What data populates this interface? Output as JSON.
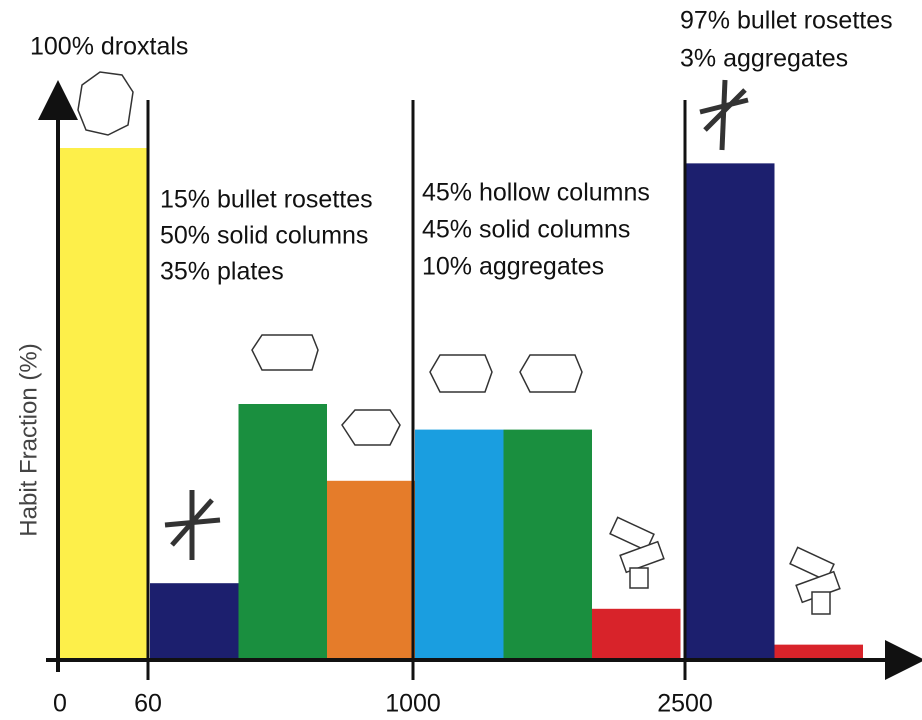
{
  "chart_data": {
    "type": "bar",
    "y_label": "Habit Fraction (%)",
    "ylim": [
      0,
      100
    ],
    "size_labels": [
      "0",
      "60",
      "1000",
      "2500"
    ],
    "groups": [
      {
        "values": [
          100
        ],
        "value_labels": [
          "100% droxtals"
        ],
        "colors": [
          "#fdef4a"
        ]
      },
      {
        "values": [
          15,
          50,
          35
        ],
        "value_labels": [
          "15% bullet rosettes",
          "50% solid columns",
          "35% plates"
        ],
        "colors": [
          "#1c1f6e",
          "#1a8f3f",
          "#e57c2a"
        ]
      },
      {
        "values": [
          45,
          45,
          10
        ],
        "value_labels": [
          "45% hollow columns",
          "45% solid columns",
          "10% aggregates"
        ],
        "colors": [
          "#1a9ee0",
          "#1a8f3f",
          "#d8232a"
        ]
      },
      {
        "values": [
          97,
          3
        ],
        "value_labels": [
          "97% bullet rosettes",
          "3% aggregates"
        ],
        "colors": [
          "#1c1f6e",
          "#d8232a"
        ]
      }
    ]
  }
}
